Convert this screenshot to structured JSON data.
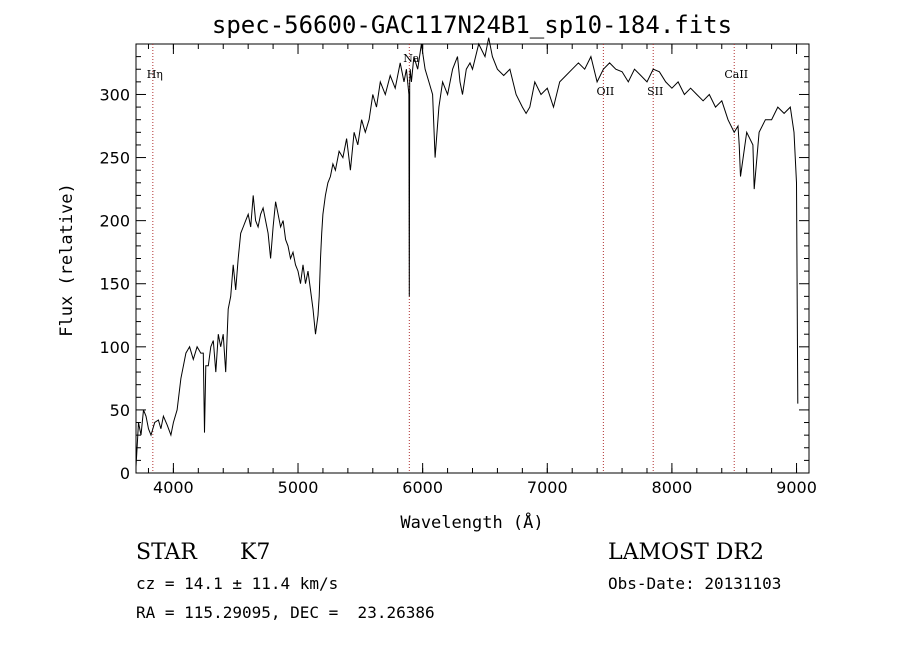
{
  "chart_data": {
    "type": "line",
    "title": "spec-56600-GAC117N24B1_sp10-184.fits",
    "xlabel": "Wavelength (Å)",
    "ylabel": "Flux (relative)",
    "xlim": [
      3700,
      9100
    ],
    "ylim": [
      0,
      340
    ],
    "xticks": [
      4000,
      5000,
      6000,
      7000,
      8000,
      9000
    ],
    "yticks": [
      0,
      50,
      100,
      150,
      200,
      250,
      300
    ],
    "grid": false,
    "legend": "none",
    "series": [
      {
        "color": "#000000",
        "x": [
          3700,
          3720,
          3740,
          3760,
          3780,
          3800,
          3820,
          3850,
          3880,
          3900,
          3920,
          3950,
          3980,
          4000,
          4030,
          4060,
          4080,
          4100,
          4130,
          4160,
          4190,
          4220,
          4240,
          4250,
          4260,
          4280,
          4300,
          4320,
          4340,
          4360,
          4380,
          4400,
          4420,
          4440,
          4460,
          4480,
          4500,
          4520,
          4540,
          4560,
          4580,
          4600,
          4620,
          4640,
          4660,
          4680,
          4700,
          4720,
          4740,
          4760,
          4780,
          4800,
          4820,
          4840,
          4860,
          4880,
          4900,
          4920,
          4940,
          4960,
          4980,
          5000,
          5020,
          5040,
          5060,
          5080,
          5100,
          5120,
          5140,
          5160,
          5170,
          5180,
          5190,
          5200,
          5220,
          5240,
          5260,
          5280,
          5300,
          5330,
          5360,
          5390,
          5420,
          5450,
          5480,
          5510,
          5540,
          5570,
          5600,
          5630,
          5660,
          5700,
          5740,
          5780,
          5820,
          5850,
          5870,
          5890,
          5893,
          5896,
          5900,
          5910,
          5930,
          5960,
          5990,
          6020,
          6050,
          6080,
          6100,
          6130,
          6160,
          6200,
          6240,
          6280,
          6300,
          6320,
          6350,
          6380,
          6400,
          6450,
          6500,
          6530,
          6560,
          6600,
          6650,
          6700,
          6750,
          6800,
          6830,
          6860,
          6880,
          6900,
          6950,
          7000,
          7050,
          7100,
          7150,
          7200,
          7250,
          7300,
          7350,
          7400,
          7450,
          7500,
          7550,
          7600,
          7650,
          7700,
          7750,
          7800,
          7850,
          7900,
          7950,
          8000,
          8050,
          8100,
          8150,
          8200,
          8250,
          8300,
          8350,
          8400,
          8450,
          8500,
          8530,
          8540,
          8550,
          8600,
          8650,
          8660,
          8700,
          8750,
          8800,
          8850,
          8900,
          8950,
          8980,
          9000,
          9010
        ],
        "values": [
          5,
          40,
          30,
          50,
          45,
          35,
          30,
          40,
          42,
          35,
          45,
          38,
          30,
          40,
          50,
          75,
          85,
          95,
          100,
          90,
          100,
          95,
          95,
          32,
          85,
          85,
          100,
          105,
          80,
          110,
          100,
          110,
          80,
          130,
          140,
          165,
          145,
          170,
          190,
          195,
          200,
          205,
          195,
          220,
          200,
          195,
          205,
          210,
          200,
          190,
          170,
          195,
          215,
          205,
          195,
          200,
          185,
          180,
          170,
          175,
          165,
          160,
          150,
          165,
          150,
          160,
          145,
          130,
          110,
          125,
          140,
          170,
          190,
          205,
          220,
          230,
          235,
          245,
          240,
          255,
          250,
          265,
          240,
          270,
          260,
          280,
          270,
          280,
          300,
          290,
          310,
          300,
          315,
          305,
          325,
          310,
          320,
          300,
          140,
          310,
          320,
          310,
          330,
          320,
          340,
          320,
          310,
          300,
          250,
          290,
          310,
          300,
          320,
          330,
          310,
          300,
          320,
          325,
          320,
          340,
          330,
          345,
          330,
          320,
          315,
          320,
          300,
          290,
          285,
          290,
          300,
          310,
          300,
          305,
          290,
          310,
          315,
          320,
          325,
          320,
          330,
          310,
          320,
          325,
          320,
          318,
          310,
          320,
          315,
          310,
          320,
          318,
          310,
          305,
          310,
          300,
          305,
          300,
          295,
          300,
          290,
          295,
          280,
          270,
          275,
          260,
          235,
          270,
          260,
          225,
          270,
          280,
          280,
          290,
          285,
          290,
          270,
          230,
          55
        ]
      }
    ],
    "annotations": [
      {
        "label": "Hη",
        "x": 3835
      },
      {
        "label": "Na",
        "x": 5893
      },
      {
        "label": "OII",
        "x": 7450
      },
      {
        "label": "SII",
        "x": 7850
      },
      {
        "label": "CaII",
        "x": 8500
      }
    ]
  },
  "info": {
    "object_type": "STAR",
    "subclass": "K7",
    "survey": "LAMOST DR2",
    "cz": "cz = 14.1 ± 11.4 km/s",
    "obs_date": "Obs-Date: 20131103",
    "coords": "RA = 115.29095, DEC =  23.26386"
  }
}
